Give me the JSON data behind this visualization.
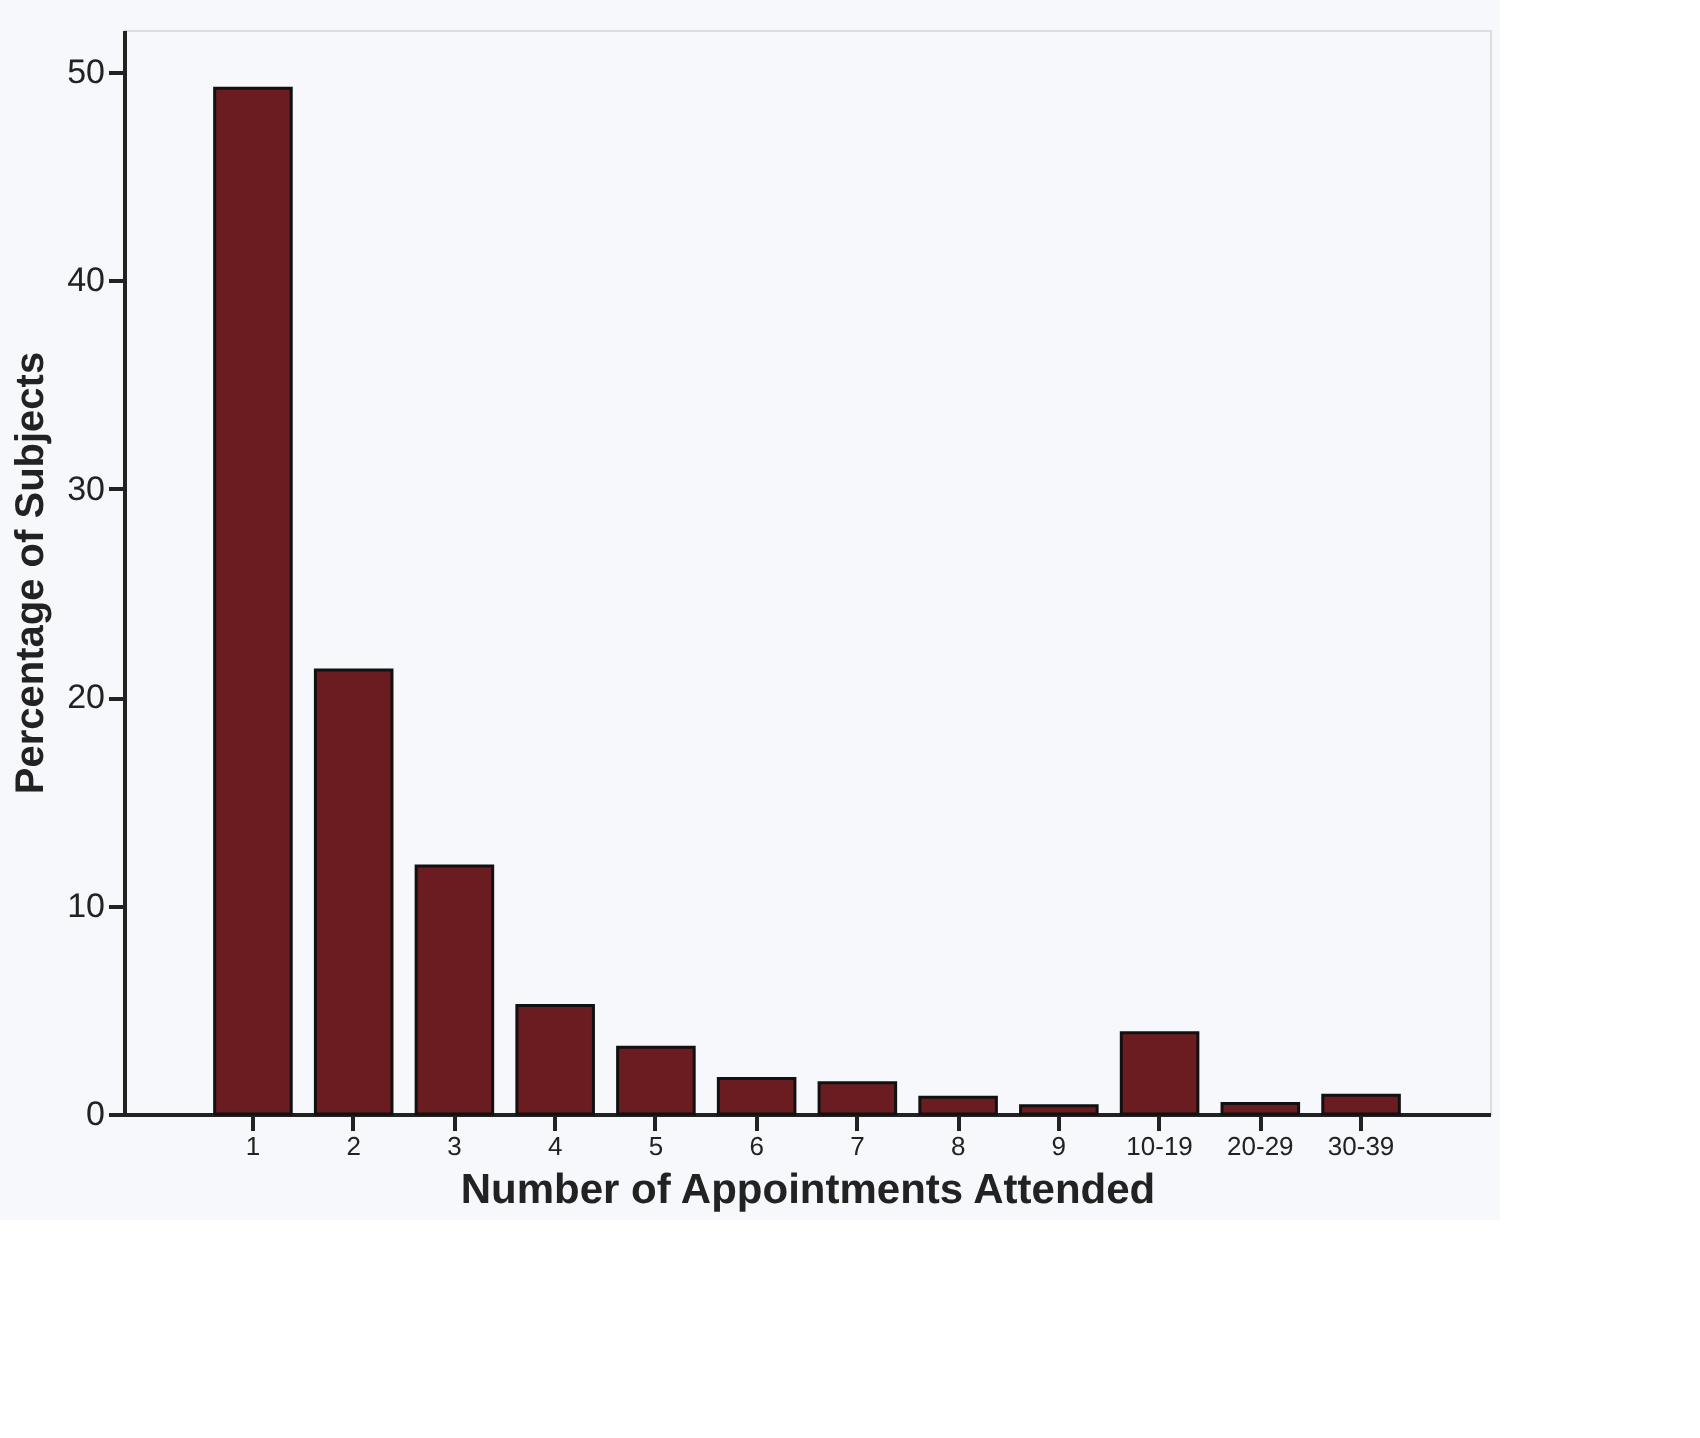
{
  "chart_data": {
    "type": "bar",
    "xlabel": "Number of Appointments Attended",
    "ylabel": "Percentage of Subjects",
    "categories": [
      "1",
      "2",
      "3",
      "4",
      "5",
      "6",
      "7",
      "8",
      "9",
      "10-19",
      "20-29",
      "30-39"
    ],
    "values": [
      49.2,
      21.3,
      11.9,
      5.2,
      3.2,
      1.7,
      1.5,
      0.8,
      0.4,
      3.9,
      0.5,
      0.9
    ],
    "color": "#6b1c20",
    "ylim": [
      0,
      52
    ],
    "yticks": [
      0,
      10,
      20,
      30,
      40,
      50
    ],
    "grid": false,
    "legend": false
  }
}
